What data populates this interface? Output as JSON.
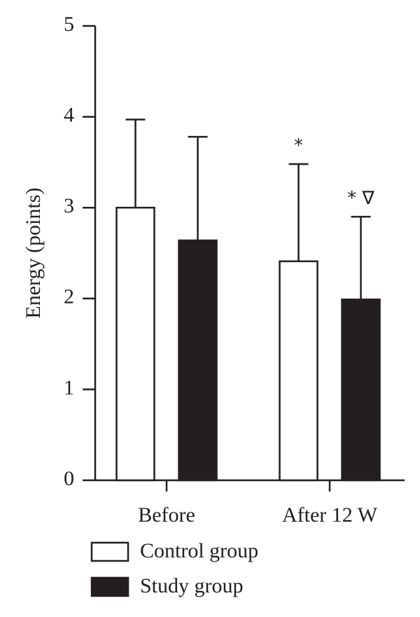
{
  "chart_data": {
    "type": "bar",
    "ylabel": "Energy (points)",
    "xlabel": "",
    "ylim": [
      0,
      5
    ],
    "yticks": [
      "0",
      "1",
      "2",
      "3",
      "4",
      "5"
    ],
    "categories": [
      "Before",
      "After 12 W"
    ],
    "series": [
      {
        "name": "Control group",
        "values": [
          3.0,
          2.41
        ],
        "errors": [
          0.97,
          1.07
        ],
        "color": "#ffffff"
      },
      {
        "name": "Study group",
        "values": [
          2.64,
          1.99
        ],
        "errors": [
          1.14,
          0.91
        ],
        "color": "#231f20"
      }
    ],
    "annotations": [
      {
        "category": 1,
        "series": 0,
        "text": "*"
      },
      {
        "category": 1,
        "series": 1,
        "text": "* ∇"
      }
    ],
    "legend_position": "bottom-left",
    "grid": false
  }
}
